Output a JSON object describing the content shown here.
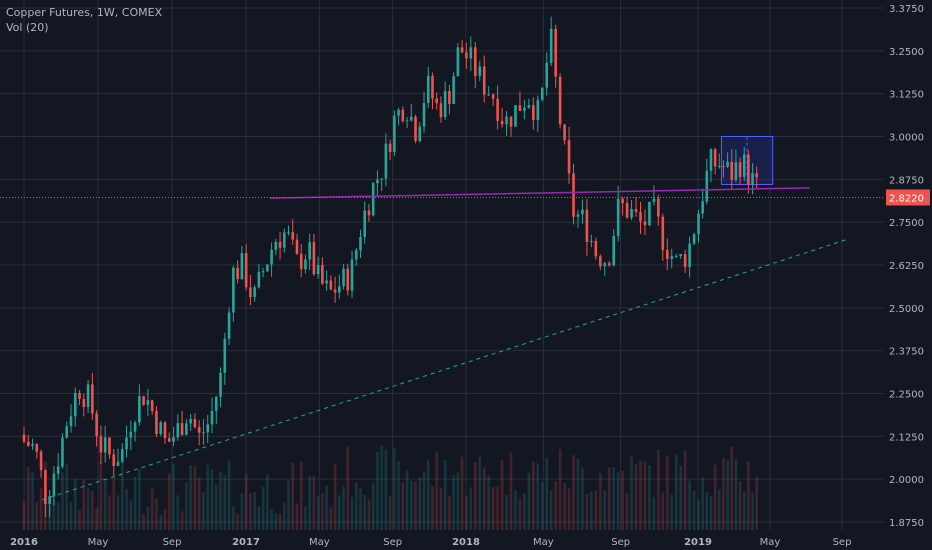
{
  "legend": {
    "title": "Copper Futures, 1W, COMEX",
    "volume": "Vol (20)"
  },
  "colors": {
    "background": "#131722",
    "grid": "#2a2e39",
    "up": "#26a69a",
    "down": "#ef5350",
    "purple": "#9c27b0",
    "trend": "#26a69a",
    "price_line": "#ef5350",
    "box_fill": "#1e2a78",
    "box_stroke": "#5561ff",
    "text": "#b2b5be"
  },
  "chart_data": {
    "type": "candlestick",
    "title": "Copper Futures, 1W, COMEX",
    "y_axis": {
      "side": "right",
      "ylim": [
        1.84,
        3.39
      ],
      "ticks": [
        "3.3750",
        "3.2500",
        "3.1250",
        "3.0000",
        "2.8750",
        "2.7500",
        "2.6250",
        "2.5000",
        "2.3750",
        "2.2500",
        "2.1250",
        "2.0000",
        "1.8750"
      ]
    },
    "x_axis": {
      "ticks": [
        "2016",
        "May",
        "Sep",
        "2017",
        "May",
        "Sep",
        "2018",
        "May",
        "Sep",
        "2019",
        "May",
        "Sep"
      ]
    },
    "last_price": "2.8220",
    "weekly_path": [
      [
        "2016-01",
        2.11
      ],
      [
        "2016-01",
        2.09
      ],
      [
        "2016-02",
        1.95
      ],
      [
        "2016-02",
        2.05
      ],
      [
        "2016-03",
        2.18
      ],
      [
        "2016-04",
        2.27
      ],
      [
        "2016-04",
        2.23
      ],
      [
        "2016-05",
        2.1
      ],
      [
        "2016-05",
        2.06
      ],
      [
        "2016-06",
        2.08
      ],
      [
        "2016-07",
        2.2
      ],
      [
        "2016-07",
        2.25
      ],
      [
        "2016-08",
        2.18
      ],
      [
        "2016-08",
        2.1
      ],
      [
        "2016-09",
        2.14
      ],
      [
        "2016-09",
        2.2
      ],
      [
        "2016-10",
        2.12
      ],
      [
        "2016-10",
        2.17
      ],
      [
        "2016-11",
        2.3
      ],
      [
        "2016-11",
        2.6
      ],
      [
        "2016-12",
        2.62
      ],
      [
        "2016-12",
        2.52
      ],
      [
        "2017-01",
        2.62
      ],
      [
        "2017-02",
        2.7
      ],
      [
        "2017-02",
        2.72
      ],
      [
        "2017-03",
        2.63
      ],
      [
        "2017-03",
        2.67
      ],
      [
        "2017-04",
        2.58
      ],
      [
        "2017-05",
        2.54
      ],
      [
        "2017-05",
        2.57
      ],
      [
        "2017-06",
        2.6
      ],
      [
        "2017-07",
        2.75
      ],
      [
        "2017-07",
        2.85
      ],
      [
        "2017-08",
        2.92
      ],
      [
        "2017-08",
        3.05
      ],
      [
        "2017-09",
        3.1
      ],
      [
        "2017-10",
        3.02
      ],
      [
        "2017-10",
        3.15
      ],
      [
        "2017-11",
        3.08
      ],
      [
        "2017-12",
        3.12
      ],
      [
        "2017-12",
        3.26
      ],
      [
        "2018-01",
        3.22
      ],
      [
        "2018-02",
        3.16
      ],
      [
        "2018-02",
        3.12
      ],
      [
        "2018-03",
        3.04
      ],
      [
        "2018-04",
        3.08
      ],
      [
        "2018-04",
        3.12
      ],
      [
        "2018-05",
        3.06
      ],
      [
        "2018-06",
        3.29
      ],
      [
        "2018-06",
        3.0
      ],
      [
        "2018-07",
        2.78
      ],
      [
        "2018-07",
        2.75
      ],
      [
        "2018-08",
        2.66
      ],
      [
        "2018-09",
        2.64
      ],
      [
        "2018-09",
        2.8
      ],
      [
        "2018-10",
        2.78
      ],
      [
        "2018-11",
        2.74
      ],
      [
        "2018-11",
        2.78
      ],
      [
        "2018-12",
        2.69
      ],
      [
        "2018-12",
        2.63
      ],
      [
        "2019-01",
        2.66
      ],
      [
        "2019-02",
        2.79
      ],
      [
        "2019-02",
        2.92
      ],
      [
        "2019-03",
        2.92
      ],
      [
        "2019-03",
        2.89
      ],
      [
        "2019-04",
        2.93
      ],
      [
        "2019-04",
        2.87
      ],
      [
        "2019-04",
        2.82
      ]
    ],
    "drawings": {
      "horizontal_purple_line": {
        "start": [
          "2017-02",
          2.82
        ],
        "end": [
          "2019-07",
          2.85
        ]
      },
      "trendline": {
        "start": [
          "2016-02",
          1.94
        ],
        "end": [
          "2019-09",
          2.7
        ]
      },
      "rectangle": {
        "x": [
          "2019-02",
          "2019-05"
        ],
        "y": [
          2.86,
          3.0
        ]
      }
    }
  }
}
